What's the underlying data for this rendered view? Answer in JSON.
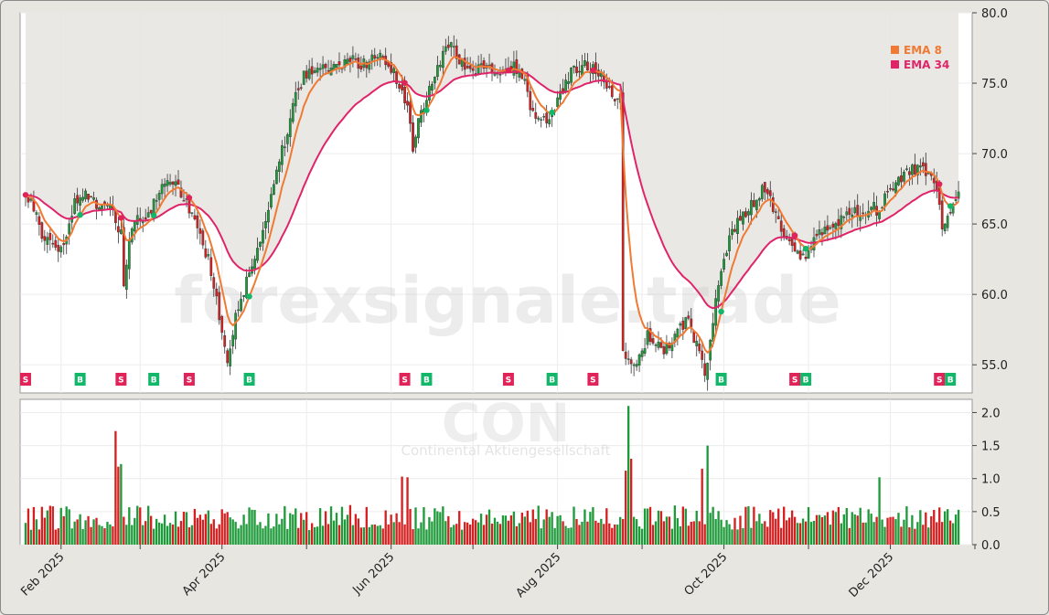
{
  "chart_data": {
    "type": "candlestick",
    "ticker_watermark": "CON",
    "company_watermark": "Continental Aktiengesellschaft",
    "site_watermark": "forexsignale.trade",
    "price_axis": {
      "min": 53.0,
      "max": 80.0,
      "ticks": [
        "80.0",
        "75.0",
        "70.0",
        "65.0",
        "60.0",
        "55.0"
      ],
      "tick_values": [
        80,
        75,
        70,
        65,
        60,
        55
      ]
    },
    "volume_axis": {
      "min": 0,
      "max": 2.2,
      "ticks": [
        "2.0",
        "1.5",
        "1.0",
        "0.5",
        "0.0"
      ],
      "tick_values": [
        2.0,
        1.5,
        1.0,
        0.5,
        0.0
      ]
    },
    "x_axis": {
      "labels": [
        "Feb 2025",
        "Apr 2025",
        "Jun 2025",
        "Aug 2025",
        "Oct 2025",
        "Dec 2025"
      ],
      "label_days": [
        14,
        73,
        135,
        196,
        257,
        318
      ],
      "gridline_days": [
        14,
        43,
        73,
        104,
        135,
        165,
        196,
        227,
        257,
        288,
        318,
        349
      ]
    },
    "legend": [
      {
        "label": "EMA 8",
        "color": "#f07a33"
      },
      {
        "label": "EMA 34",
        "color": "#e0246a"
      }
    ],
    "colors": {
      "up": "#1e9a3a",
      "down": "#d42020",
      "ema8": "#f07a33",
      "ema34": "#e0246a",
      "buy": "#13b76a",
      "sell": "#e0245a",
      "band": "#e8e6e1"
    },
    "price_anchors": [
      [
        1,
        66.8
      ],
      [
        4,
        66.2
      ],
      [
        7,
        64.2
      ],
      [
        10,
        63.5
      ],
      [
        13,
        63.2
      ],
      [
        16,
        64.0
      ],
      [
        19,
        66.5
      ],
      [
        22,
        67.2
      ],
      [
        25,
        66.8
      ],
      [
        28,
        66.2
      ],
      [
        31,
        66.5
      ],
      [
        34,
        65.2
      ],
      [
        36,
        64.3
      ],
      [
        37,
        60.8
      ],
      [
        39,
        63.5
      ],
      [
        41,
        65.0
      ],
      [
        44,
        65.6
      ],
      [
        47,
        66.0
      ],
      [
        50,
        67.2
      ],
      [
        53,
        68.5
      ],
      [
        56,
        68.0
      ],
      [
        59,
        67.0
      ],
      [
        62,
        65.8
      ],
      [
        65,
        64.0
      ],
      [
        68,
        62.5
      ],
      [
        71,
        59.5
      ],
      [
        73,
        57.0
      ],
      [
        75,
        55.5
      ],
      [
        77,
        57.5
      ],
      [
        79,
        59.0
      ],
      [
        82,
        61.0
      ],
      [
        85,
        62.5
      ],
      [
        88,
        64.5
      ],
      [
        91,
        67.0
      ],
      [
        94,
        69.5
      ],
      [
        97,
        71.5
      ],
      [
        100,
        74.0
      ],
      [
        103,
        75.5
      ],
      [
        106,
        76.0
      ],
      [
        109,
        76.2
      ],
      [
        112,
        75.8
      ],
      [
        115,
        76.0
      ],
      [
        118,
        76.5
      ],
      [
        121,
        76.8
      ],
      [
        124,
        76.2
      ],
      [
        127,
        76.5
      ],
      [
        130,
        76.8
      ],
      [
        133,
        76.5
      ],
      [
        136,
        75.8
      ],
      [
        139,
        74.5
      ],
      [
        142,
        72.5
      ],
      [
        143,
        70.5
      ],
      [
        145,
        72.5
      ],
      [
        148,
        74.0
      ],
      [
        151,
        75.5
      ],
      [
        154,
        77.0
      ],
      [
        157,
        77.8
      ],
      [
        160,
        76.5
      ],
      [
        163,
        75.8
      ],
      [
        166,
        76.0
      ],
      [
        169,
        76.2
      ],
      [
        172,
        75.8
      ],
      [
        175,
        75.5
      ],
      [
        178,
        76.2
      ],
      [
        181,
        76.0
      ],
      [
        184,
        75.0
      ],
      [
        186,
        73.5
      ],
      [
        189,
        72.5
      ],
      [
        192,
        72.2
      ],
      [
        195,
        73.5
      ],
      [
        198,
        74.5
      ],
      [
        201,
        75.8
      ],
      [
        204,
        76.0
      ],
      [
        207,
        76.3
      ],
      [
        210,
        76.1
      ],
      [
        213,
        75.5
      ],
      [
        216,
        74.2
      ],
      [
        219,
        73.8
      ],
      [
        220,
        55.8
      ],
      [
        223,
        54.8
      ],
      [
        226,
        55.5
      ],
      [
        229,
        57.0
      ],
      [
        232,
        56.8
      ],
      [
        235,
        56.0
      ],
      [
        238,
        56.5
      ],
      [
        241,
        57.5
      ],
      [
        244,
        58.5
      ],
      [
        246,
        57.0
      ],
      [
        248,
        56.0
      ],
      [
        250,
        54.0
      ],
      [
        253,
        58.0
      ],
      [
        256,
        62.0
      ],
      [
        259,
        63.8
      ],
      [
        262,
        65.0
      ],
      [
        265,
        65.8
      ],
      [
        268,
        66.5
      ],
      [
        271,
        67.5
      ],
      [
        274,
        66.8
      ],
      [
        277,
        65.0
      ],
      [
        280,
        64.3
      ],
      [
        283,
        63.0
      ],
      [
        286,
        62.5
      ],
      [
        289,
        63.8
      ],
      [
        292,
        64.5
      ],
      [
        295,
        65.0
      ],
      [
        298,
        64.8
      ],
      [
        301,
        65.5
      ],
      [
        304,
        66.0
      ],
      [
        307,
        65.7
      ],
      [
        310,
        66.3
      ],
      [
        313,
        66.0
      ],
      [
        316,
        66.8
      ],
      [
        319,
        67.5
      ],
      [
        322,
        68.3
      ],
      [
        325,
        68.8
      ],
      [
        328,
        69.0
      ],
      [
        331,
        68.6
      ],
      [
        334,
        68.0
      ],
      [
        336,
        66.0
      ],
      [
        337,
        64.5
      ],
      [
        339,
        65.5
      ],
      [
        341,
        66.3
      ],
      [
        343,
        67.0
      ]
    ],
    "signals": [
      {
        "type": "S",
        "day": 1
      },
      {
        "type": "B",
        "day": 21
      },
      {
        "type": "S",
        "day": 36
      },
      {
        "type": "B",
        "day": 48
      },
      {
        "type": "S",
        "day": 61
      },
      {
        "type": "B",
        "day": 83
      },
      {
        "type": "S",
        "day": 140
      },
      {
        "type": "B",
        "day": 148
      },
      {
        "type": "S",
        "day": 178
      },
      {
        "type": "B",
        "day": 194
      },
      {
        "type": "S",
        "day": 209
      },
      {
        "type": "B",
        "day": 256
      },
      {
        "type": "S",
        "day": 283
      },
      {
        "type": "B",
        "day": 287
      },
      {
        "type": "S",
        "day": 336
      },
      {
        "type": "B",
        "day": 340
      }
    ],
    "volume_spikes": [
      [
        34,
        1.72
      ],
      [
        35,
        1.18
      ],
      [
        36,
        1.22
      ],
      [
        139,
        1.03
      ],
      [
        141,
        1.02
      ],
      [
        221,
        1.12
      ],
      [
        222,
        2.1
      ],
      [
        223,
        1.3
      ],
      [
        249,
        1.15
      ],
      [
        251,
        1.5
      ],
      [
        314,
        1.02
      ]
    ]
  }
}
